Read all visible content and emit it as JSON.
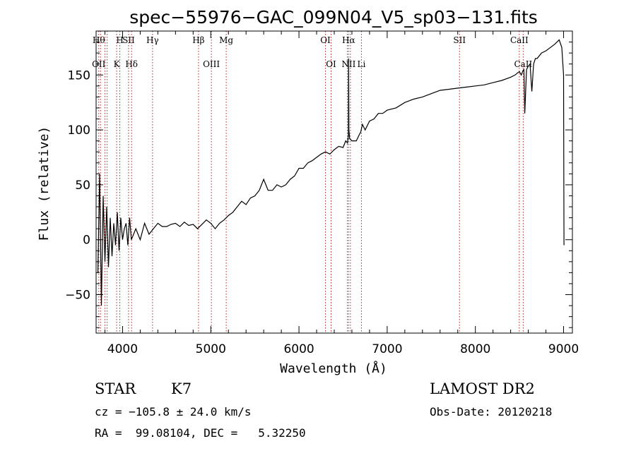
{
  "chart_data": {
    "type": "line",
    "title": "spec−55976−GAC_099N04_V5_sp03−131.fits",
    "xlabel": "Wavelength (Å)",
    "ylabel": "Flux (relative)",
    "xlim": [
      3700,
      9100
    ],
    "ylim": [
      -85,
      190
    ],
    "xticks": [
      4000,
      5000,
      6000,
      7000,
      8000,
      9000
    ],
    "yticks": [
      -50,
      0,
      50,
      100,
      150
    ],
    "ytick_labels": [
      "−50",
      "0",
      "50",
      "100",
      "150"
    ],
    "grid": false,
    "series": [
      {
        "x": [
          3720,
          3740,
          3760,
          3780,
          3800,
          3820,
          3840,
          3860,
          3880,
          3900,
          3920,
          3940,
          3960,
          3980,
          4000,
          4020,
          4040,
          4060,
          4080,
          4100,
          4150,
          4200,
          4250,
          4300,
          4350,
          4400,
          4450,
          4500,
          4550,
          4600,
          4650,
          4700,
          4750,
          4800,
          4850,
          4900,
          4950,
          5000,
          5050,
          5100,
          5150,
          5200,
          5250,
          5300,
          5350,
          5400,
          5450,
          5500,
          5550,
          5600,
          5650,
          5700,
          5750,
          5800,
          5850,
          5900,
          5950,
          6000,
          6050,
          6100,
          6150,
          6200,
          6250,
          6300,
          6350,
          6400,
          6450,
          6500,
          6530,
          6550,
          6560,
          6563,
          6566,
          6575,
          6600,
          6650,
          6680,
          6700,
          6720,
          6750,
          6800,
          6850,
          6900,
          6950,
          7000,
          7100,
          7200,
          7300,
          7400,
          7500,
          7600,
          7700,
          7800,
          7900,
          8000,
          8100,
          8200,
          8300,
          8400,
          8450,
          8480,
          8500,
          8520,
          8540,
          8550,
          8560,
          8580,
          8600,
          8620,
          8640,
          8660,
          8680,
          8700,
          8750,
          8800,
          8850,
          8900,
          8950,
          8980,
          9000,
          9005
        ],
        "y": [
          -30,
          60,
          -60,
          40,
          -20,
          30,
          -25,
          20,
          -15,
          15,
          -5,
          25,
          -10,
          20,
          0,
          10,
          15,
          -5,
          20,
          0,
          10,
          0,
          15,
          5,
          10,
          15,
          12,
          12,
          14,
          15,
          12,
          16,
          13,
          14,
          10,
          14,
          18,
          15,
          10,
          15,
          18,
          22,
          25,
          30,
          35,
          32,
          38,
          40,
          45,
          55,
          45,
          45,
          50,
          48,
          50,
          55,
          58,
          65,
          65,
          70,
          72,
          75,
          78,
          80,
          78,
          82,
          85,
          84,
          90,
          88,
          95,
          165,
          100,
          92,
          90,
          90,
          95,
          98,
          105,
          100,
          108,
          110,
          115,
          115,
          118,
          120,
          125,
          128,
          130,
          133,
          136,
          137,
          138,
          139,
          140,
          141,
          143,
          145,
          148,
          150,
          152,
          153,
          150,
          154,
          155,
          115,
          155,
          158,
          160,
          135,
          160,
          165,
          165,
          170,
          172,
          175,
          178,
          182,
          175,
          150,
          -5
        ]
      }
    ],
    "lines": [
      {
        "x": 3730,
        "top": "Hθ",
        "bottom": "OII"
      },
      {
        "x": 3750,
        "top": "",
        "bottom": ""
      },
      {
        "x": 3800,
        "top": "",
        "bottom": ""
      },
      {
        "x": 3825,
        "top": "",
        "bottom": ""
      },
      {
        "x": 3933,
        "top": "",
        "bottom": "K"
      },
      {
        "x": 3969,
        "top": "H",
        "bottom": ""
      },
      {
        "x": 4068,
        "top": "SII",
        "bottom": ""
      },
      {
        "x": 4102,
        "top": "",
        "bottom": "Hδ"
      },
      {
        "x": 4340,
        "top": "Hγ",
        "bottom": ""
      },
      {
        "x": 4861,
        "top": "Hβ",
        "bottom": ""
      },
      {
        "x": 5007,
        "top": "",
        "bottom": "OIII"
      },
      {
        "x": 5175,
        "top": "Mg",
        "bottom": ""
      },
      {
        "x": 6300,
        "top": "OI",
        "bottom": ""
      },
      {
        "x": 6364,
        "top": "",
        "bottom": "OI"
      },
      {
        "x": 6548,
        "top": "",
        "bottom": ""
      },
      {
        "x": 6563,
        "top": "Hα",
        "bottom": "NII"
      },
      {
        "x": 6583,
        "top": "",
        "bottom": ""
      },
      {
        "x": 6708,
        "top": "",
        "bottom": "Li"
      },
      {
        "x": 7820,
        "top": "SII",
        "bottom": ""
      },
      {
        "x": 8498,
        "top": "CaII",
        "bottom": ""
      },
      {
        "x": 8542,
        "top": "",
        "bottom": "CaII"
      }
    ]
  },
  "info": {
    "class": "STAR",
    "subclass": "K7",
    "survey": "LAMOST DR2",
    "cz": "cz = −105.8 ± 24.0 km/s",
    "obs_date": "Obs-Date: 20120218",
    "coords": "RA =  99.08104, DEC =   5.32250"
  },
  "colors": {
    "line_markers": "#b22222",
    "spectrum": "#000000"
  }
}
